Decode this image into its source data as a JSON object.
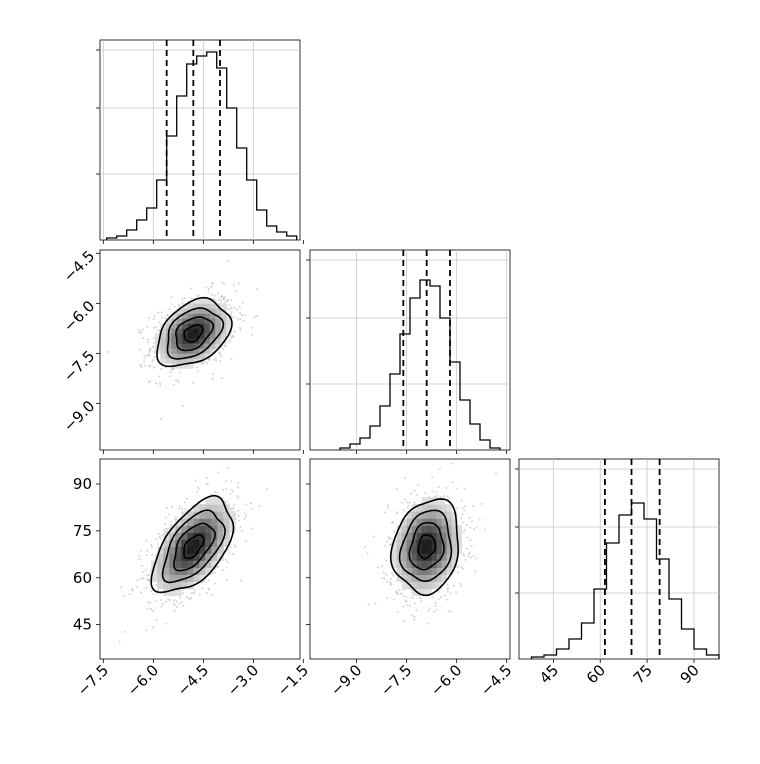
{
  "chart_data": {
    "type": "corner",
    "parameters": [
      {
        "xlim": [
          -7.6,
          -1.6
        ],
        "ticks": [
          -7.5,
          -6.0,
          -4.5,
          -3.0,
          -1.5
        ],
        "tick_labels": [
          "−7.5",
          "−6.0",
          "−4.5",
          "−3.0",
          "−1.5"
        ],
        "median": -4.8,
        "q16": -5.6,
        "q84": -4.0
      },
      {
        "xlim": [
          -10.4,
          -4.4
        ],
        "ticks": [
          -9.0,
          -7.5,
          -6.0,
          -4.5
        ],
        "tick_labels": [
          "−9.0",
          "−7.5",
          "−6.0",
          "−4.5"
        ],
        "median": -6.9,
        "q16": -7.6,
        "q84": -6.2
      },
      {
        "xlim": [
          34,
          98
        ],
        "ticks": [
          45,
          60,
          75,
          90
        ],
        "tick_labels": [
          "45",
          "60",
          "75",
          "90"
        ],
        "median": 70,
        "q16": 61.5,
        "q84": 79
      }
    ],
    "histograms": [
      {
        "param": 0,
        "bin_edges": [
          -7.4,
          -7.1,
          -6.8,
          -6.5,
          -6.2,
          -5.9,
          -5.6,
          -5.3,
          -5.0,
          -4.7,
          -4.4,
          -4.1,
          -3.8,
          -3.5,
          -3.2,
          -2.9,
          -2.6,
          -2.3,
          -2.0,
          -1.7
        ],
        "counts": [
          0.01,
          0.02,
          0.05,
          0.1,
          0.16,
          0.3,
          0.52,
          0.72,
          0.88,
          0.92,
          0.94,
          0.86,
          0.66,
          0.46,
          0.3,
          0.15,
          0.07,
          0.04,
          0.02
        ]
      },
      {
        "param": 1,
        "bin_edges": [
          -9.5,
          -9.2,
          -8.9,
          -8.6,
          -8.3,
          -8.0,
          -7.7,
          -7.4,
          -7.1,
          -6.8,
          -6.5,
          -6.2,
          -5.9,
          -5.6,
          -5.3,
          -5.0,
          -4.7
        ],
        "counts": [
          0.01,
          0.03,
          0.06,
          0.12,
          0.22,
          0.38,
          0.58,
          0.76,
          0.85,
          0.82,
          0.66,
          0.44,
          0.25,
          0.13,
          0.05,
          0.01
        ]
      },
      {
        "param": 2,
        "bin_edges": [
          38,
          42,
          46,
          50,
          54,
          58,
          62,
          66,
          70,
          74,
          78,
          82,
          86,
          90,
          94,
          98
        ],
        "counts": [
          0.01,
          0.02,
          0.05,
          0.1,
          0.18,
          0.35,
          0.58,
          0.72,
          0.78,
          0.7,
          0.5,
          0.3,
          0.15,
          0.05,
          0.02
        ]
      }
    ],
    "pairs": [
      {
        "row": 1,
        "col": 0,
        "center": [
          -4.8,
          -6.9
        ],
        "sigma": [
          0.55,
          0.5
        ],
        "rho": 0.35,
        "grid": false
      },
      {
        "row": 2,
        "col": 0,
        "center": [
          -4.8,
          70
        ],
        "sigma": [
          0.6,
          7.5
        ],
        "rho": 0.55,
        "grid": false
      },
      {
        "row": 2,
        "col": 1,
        "center": [
          -6.9,
          70
        ],
        "sigma": [
          0.5,
          7.5
        ],
        "rho": 0.15,
        "grid": false
      }
    ],
    "grid": true,
    "contour_levels_sigma": [
      0.5,
      1.0,
      1.5,
      2.0
    ]
  }
}
